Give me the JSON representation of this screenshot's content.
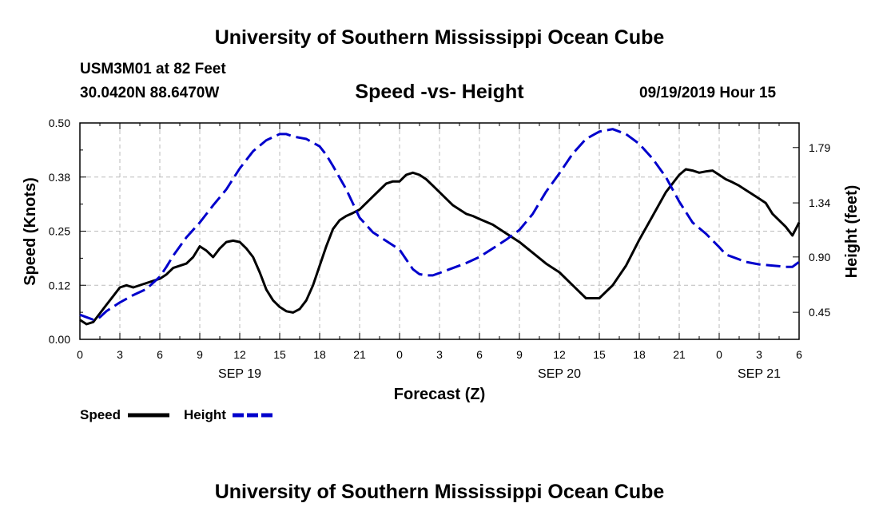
{
  "header": {
    "title": "University of Southern Mississippi Ocean Cube",
    "station": "USM3M01 at 82 Feet",
    "coords": "30.0420N 88.6470W",
    "chart_title": "Speed -vs- Height",
    "datetime": "09/19/2019 Hour 15"
  },
  "footer": {
    "title": "University of Southern Mississippi Ocean Cube"
  },
  "colors": {
    "speed": "#000000",
    "height": "#0000cc",
    "grid": "#bbbbbb"
  },
  "chart_data": {
    "type": "line",
    "title": "Speed -vs- Height",
    "xlabel": "Forecast (Z)",
    "ylabel": "Speed (Knots)",
    "y2label": "Height (feet)",
    "xlim": [
      0,
      54
    ],
    "ylim": [
      0,
      0.5
    ],
    "y2lim": [
      0.23,
      1.99
    ],
    "x_ticks": [
      0,
      3,
      6,
      9,
      12,
      15,
      18,
      21,
      24,
      27,
      30,
      33,
      36,
      39,
      42,
      45,
      48,
      51,
      54
    ],
    "x_tick_labels": [
      "0",
      "3",
      "6",
      "9",
      "12",
      "15",
      "18",
      "21",
      "0",
      "3",
      "6",
      "9",
      "12",
      "15",
      "18",
      "21",
      "0",
      "3",
      "6"
    ],
    "y_ticks": [
      0,
      0.125,
      0.25,
      0.375,
      0.5
    ],
    "y_tick_labels": [
      "0.00",
      "0.12",
      "0.25",
      "0.38",
      "0.50"
    ],
    "y2_ticks": [
      0.45,
      0.9,
      1.34,
      1.79
    ],
    "y2_tick_labels": [
      "0.45",
      "0.90",
      "1.34",
      "1.79"
    ],
    "day_labels": [
      {
        "x": 12,
        "label": "SEP 19"
      },
      {
        "x": 36,
        "label": "SEP 20"
      },
      {
        "x": 51,
        "label": "SEP 21"
      }
    ],
    "legend": [
      {
        "name": "Speed",
        "style": "solid"
      },
      {
        "name": "Height",
        "style": "dashed"
      }
    ],
    "series": [
      {
        "name": "Speed",
        "axis": "left",
        "x": [
          0,
          0.5,
          1,
          1.5,
          2,
          2.5,
          3,
          3.5,
          4,
          5,
          6,
          6.5,
          7,
          8,
          8.5,
          9,
          9.5,
          10,
          10.5,
          11,
          11.5,
          12,
          12.5,
          13,
          13.5,
          14,
          14.5,
          15,
          15.5,
          16,
          16.5,
          17,
          17.5,
          18,
          18.5,
          19,
          19.5,
          20,
          20.5,
          21,
          21.5,
          22,
          22.5,
          23,
          23.5,
          24,
          24.5,
          25,
          25.5,
          26,
          26.5,
          27,
          27.5,
          28,
          28.5,
          29,
          29.5,
          30,
          31,
          32,
          33,
          34,
          35,
          36,
          37,
          38,
          39,
          40,
          41,
          42,
          43,
          44,
          45,
          45.5,
          46,
          46.5,
          47,
          47.5,
          48,
          48.5,
          49,
          49.5,
          50,
          50.5,
          51,
          51.5,
          52,
          52.5,
          53,
          53.5,
          54
        ],
        "values": [
          0.045,
          0.035,
          0.04,
          0.06,
          0.08,
          0.1,
          0.12,
          0.125,
          0.12,
          0.13,
          0.14,
          0.15,
          0.165,
          0.175,
          0.19,
          0.215,
          0.205,
          0.19,
          0.21,
          0.225,
          0.228,
          0.225,
          0.21,
          0.19,
          0.155,
          0.115,
          0.09,
          0.075,
          0.065,
          0.062,
          0.07,
          0.09,
          0.125,
          0.17,
          0.215,
          0.255,
          0.275,
          0.285,
          0.292,
          0.3,
          0.315,
          0.33,
          0.345,
          0.36,
          0.365,
          0.365,
          0.38,
          0.385,
          0.38,
          0.37,
          0.355,
          0.34,
          0.325,
          0.31,
          0.3,
          0.29,
          0.285,
          0.278,
          0.265,
          0.245,
          0.225,
          0.2,
          0.175,
          0.155,
          0.125,
          0.095,
          0.095,
          0.125,
          0.17,
          0.23,
          0.285,
          0.34,
          0.38,
          0.393,
          0.39,
          0.385,
          0.388,
          0.39,
          0.38,
          0.37,
          0.363,
          0.355,
          0.345,
          0.335,
          0.325,
          0.315,
          0.29,
          0.275,
          0.26,
          0.24,
          0.27
        ]
      },
      {
        "name": "Height",
        "axis": "right",
        "x": [
          0,
          0.5,
          1,
          1.5,
          2,
          3,
          4,
          5,
          6,
          6.5,
          7,
          8,
          9,
          10,
          11,
          12,
          13,
          14,
          15,
          15.5,
          16,
          17,
          18,
          18.5,
          19,
          20,
          21,
          22,
          23,
          24,
          24.5,
          25,
          25.5,
          26,
          26.5,
          27,
          28,
          29,
          30,
          31,
          32,
          33,
          34,
          35,
          36,
          37,
          38,
          39,
          40,
          41,
          42,
          43,
          44,
          45,
          46,
          47,
          48,
          48.5,
          49,
          49.5,
          50,
          51,
          52,
          53,
          53.5,
          54
        ],
        "values": [
          0.43,
          0.41,
          0.39,
          0.41,
          0.46,
          0.53,
          0.59,
          0.64,
          0.74,
          0.82,
          0.91,
          1.06,
          1.18,
          1.32,
          1.45,
          1.62,
          1.76,
          1.85,
          1.9,
          1.9,
          1.88,
          1.86,
          1.8,
          1.73,
          1.64,
          1.45,
          1.22,
          1.1,
          1.03,
          0.96,
          0.88,
          0.8,
          0.76,
          0.75,
          0.75,
          0.77,
          0.81,
          0.85,
          0.9,
          0.97,
          1.04,
          1.12,
          1.25,
          1.43,
          1.58,
          1.74,
          1.86,
          1.92,
          1.94,
          1.9,
          1.82,
          1.7,
          1.55,
          1.35,
          1.18,
          1.09,
          0.98,
          0.92,
          0.9,
          0.88,
          0.86,
          0.84,
          0.83,
          0.82,
          0.82,
          0.86
        ]
      }
    ]
  }
}
